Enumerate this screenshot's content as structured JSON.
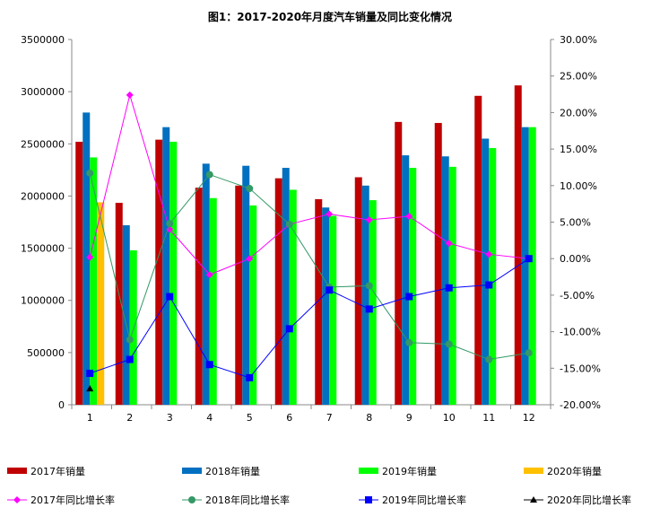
{
  "chart_data": {
    "type": "bar+line",
    "title": "图1：2017-2020年月度汽车销量及同比变化情况",
    "categories": [
      "1",
      "2",
      "3",
      "4",
      "5",
      "6",
      "7",
      "8",
      "9",
      "10",
      "11",
      "12"
    ],
    "y_left": {
      "range": [
        0,
        3500000
      ],
      "ticks": [
        "0",
        "500000",
        "1000000",
        "1500000",
        "2000000",
        "2500000",
        "3000000",
        "3500000"
      ]
    },
    "y_right": {
      "range": [
        -20,
        30
      ],
      "unit": "%",
      "ticks": [
        "-20.00%",
        "-15.00%",
        "-10.00%",
        "-5.00%",
        "0.00%",
        "5.00%",
        "10.00%",
        "15.00%",
        "20.00%",
        "25.00%",
        "30.00%"
      ]
    },
    "grid": false,
    "legend_position": "bottom",
    "bar_series": [
      {
        "name": "2017年销量",
        "color": "#C00000",
        "values": [
          2520000,
          1935000,
          2540000,
          2080000,
          2100000,
          2170000,
          1970000,
          2180000,
          2710000,
          2700000,
          2960000,
          3060000
        ]
      },
      {
        "name": "2018年销量",
        "color": "#0070C0",
        "values": [
          2800000,
          1720000,
          2660000,
          2310000,
          2290000,
          2270000,
          1890000,
          2100000,
          2390000,
          2380000,
          2550000,
          2660000
        ]
      },
      {
        "name": "2019年销量",
        "color": "#00FF00",
        "values": [
          2370000,
          1480000,
          2520000,
          1980000,
          1910000,
          2060000,
          1810000,
          1960000,
          2270000,
          2280000,
          2460000,
          2660000
        ]
      },
      {
        "name": "2020年销量",
        "color": "#FFC000",
        "values": [
          1940000,
          null,
          null,
          null,
          null,
          null,
          null,
          null,
          null,
          null,
          null,
          null
        ]
      }
    ],
    "line_series": [
      {
        "name": "2017年同比增长率",
        "color": "#FF00FF",
        "marker": "diamond",
        "values": [
          0.2,
          22.4,
          4.0,
          -2.2,
          0.0,
          4.7,
          6.1,
          5.3,
          5.8,
          2.1,
          0.6,
          0.0
        ]
      },
      {
        "name": "2018年同比增长率",
        "color": "#339966",
        "marker": "circle",
        "values": [
          11.7,
          -11.1,
          4.8,
          11.5,
          9.6,
          4.7,
          -3.9,
          -3.7,
          -11.5,
          -11.7,
          -13.8,
          -12.9
        ]
      },
      {
        "name": "2019年同比增长率",
        "color": "#0000FF",
        "marker": "square",
        "values": [
          -15.7,
          -13.8,
          -5.2,
          -14.5,
          -16.3,
          -9.6,
          -4.3,
          -6.9,
          -5.2,
          -4.0,
          -3.6,
          0.0
        ]
      },
      {
        "name": "2020年同比增长率",
        "color": "#000000",
        "marker": "triangle",
        "values": [
          -17.8,
          null,
          null,
          null,
          null,
          null,
          null,
          null,
          null,
          null,
          null,
          null
        ]
      }
    ]
  }
}
